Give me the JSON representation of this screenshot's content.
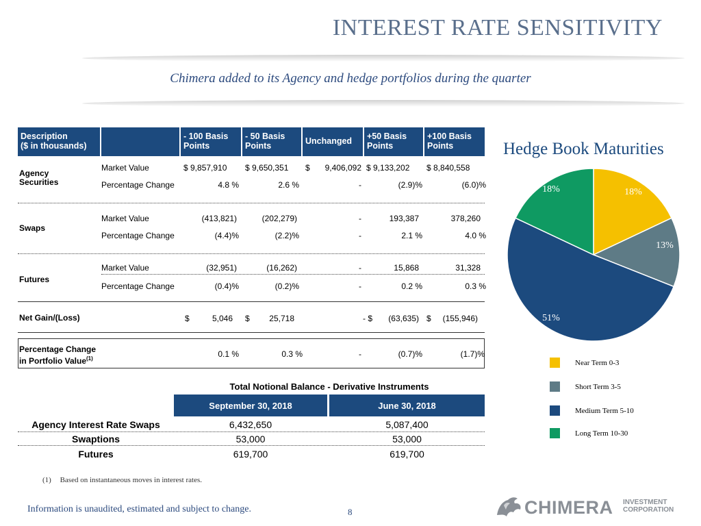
{
  "title": "INTEREST RATE SENSITIVITY",
  "subtitle": "Chimera added to its Agency and hedge portfolios during the quarter",
  "table": {
    "headers": {
      "description": [
        "Description",
        "($ in thousands)"
      ],
      "minus100": [
        "- 100 Basis",
        "Points"
      ],
      "minus50": [
        "- 50 Basis",
        "Points"
      ],
      "unchanged": "Unchanged",
      "plus50": [
        "+50 Basis",
        "Points"
      ],
      "plus100": [
        "+100 Basis",
        "Points"
      ]
    },
    "sections": [
      {
        "label": [
          "Agency",
          "Securities"
        ],
        "rows": [
          {
            "metric": "Market Value",
            "values": [
              "$ 9,857,910",
              "$ 9,650,351",
              "$",
              "9,406,092",
              "$ 9,133,202",
              "$ 8,840,558"
            ]
          },
          {
            "metric": "Percentage Change",
            "values": [
              "4.8 %",
              "2.6 %",
              "",
              "-",
              "(2.9)%",
              "(6.0)%"
            ]
          }
        ]
      },
      {
        "label": [
          "Swaps"
        ],
        "rows": [
          {
            "metric": "Market Value",
            "values": [
              "(413,821)",
              "(202,279)",
              "",
              "-",
              "193,387",
              "378,260"
            ]
          },
          {
            "metric": "Percentage Change",
            "values": [
              "(4.4)%",
              "(2.2)%",
              "",
              "-",
              "2.1 %",
              "4.0 %"
            ]
          }
        ]
      },
      {
        "label": [
          "Futures"
        ],
        "rows": [
          {
            "metric": "Market Value",
            "values": [
              "(32,951)",
              "(16,262)",
              "",
              "-",
              "15,868",
              "31,328"
            ]
          },
          {
            "metric": "Percentage Change",
            "values": [
              "(0.4)%",
              "(0.2)%",
              "",
              "-",
              "0.2 %",
              "0.3 %"
            ]
          }
        ]
      }
    ],
    "net_gain": {
      "label": "Net Gain/(Loss)",
      "values": [
        "$",
        "5,046",
        "$",
        "25,718",
        "- $",
        "(63,635)",
        "$",
        "(155,946)"
      ]
    },
    "pct_portfolio": {
      "label": [
        "Percentage Change",
        "in Portfolio Value"
      ],
      "sup": "(1)",
      "values": [
        "0.1 %",
        "0.3 %",
        "-",
        "(0.7)%",
        "(1.7)%"
      ]
    }
  },
  "notional": {
    "title": "Total Notional Balance - Derivative Instruments",
    "col1": "September 30, 2018",
    "col2": "June 30, 2018",
    "rows": [
      {
        "label": "Agency Interest Rate Swaps",
        "v1": "6,432,650",
        "v2": "5,087,400"
      },
      {
        "label": "Swaptions",
        "v1": "53,000",
        "v2": "53,000"
      },
      {
        "label": "Futures",
        "v1": "619,700",
        "v2": "619,700"
      }
    ]
  },
  "footnote": {
    "marker": "(1)",
    "text": "Based on instantaneous moves in interest rates."
  },
  "disclaimer": "Information is unaudited, estimated and subject to change.",
  "page_number": "8",
  "logo": {
    "word": "CHIMERA",
    "line1": "INVESTMENT",
    "line2": "CORPORATION"
  },
  "chart_data": {
    "type": "pie",
    "title": "Hedge Book Maturities",
    "slices": [
      {
        "name": "Near Term 0-3",
        "value": 18,
        "label": "18%",
        "color": "#f5c000"
      },
      {
        "name": "Short Term 3-5",
        "value": 13,
        "label": "13%",
        "color": "#5e7b86"
      },
      {
        "name": "Medium Term 5-10",
        "value": 51,
        "label": "51%",
        "color": "#1c4a7e"
      },
      {
        "name": "Long Term 10-30",
        "value": 18,
        "label": "18%",
        "color": "#0f9a62"
      }
    ],
    "legend_position": "bottom-right"
  }
}
